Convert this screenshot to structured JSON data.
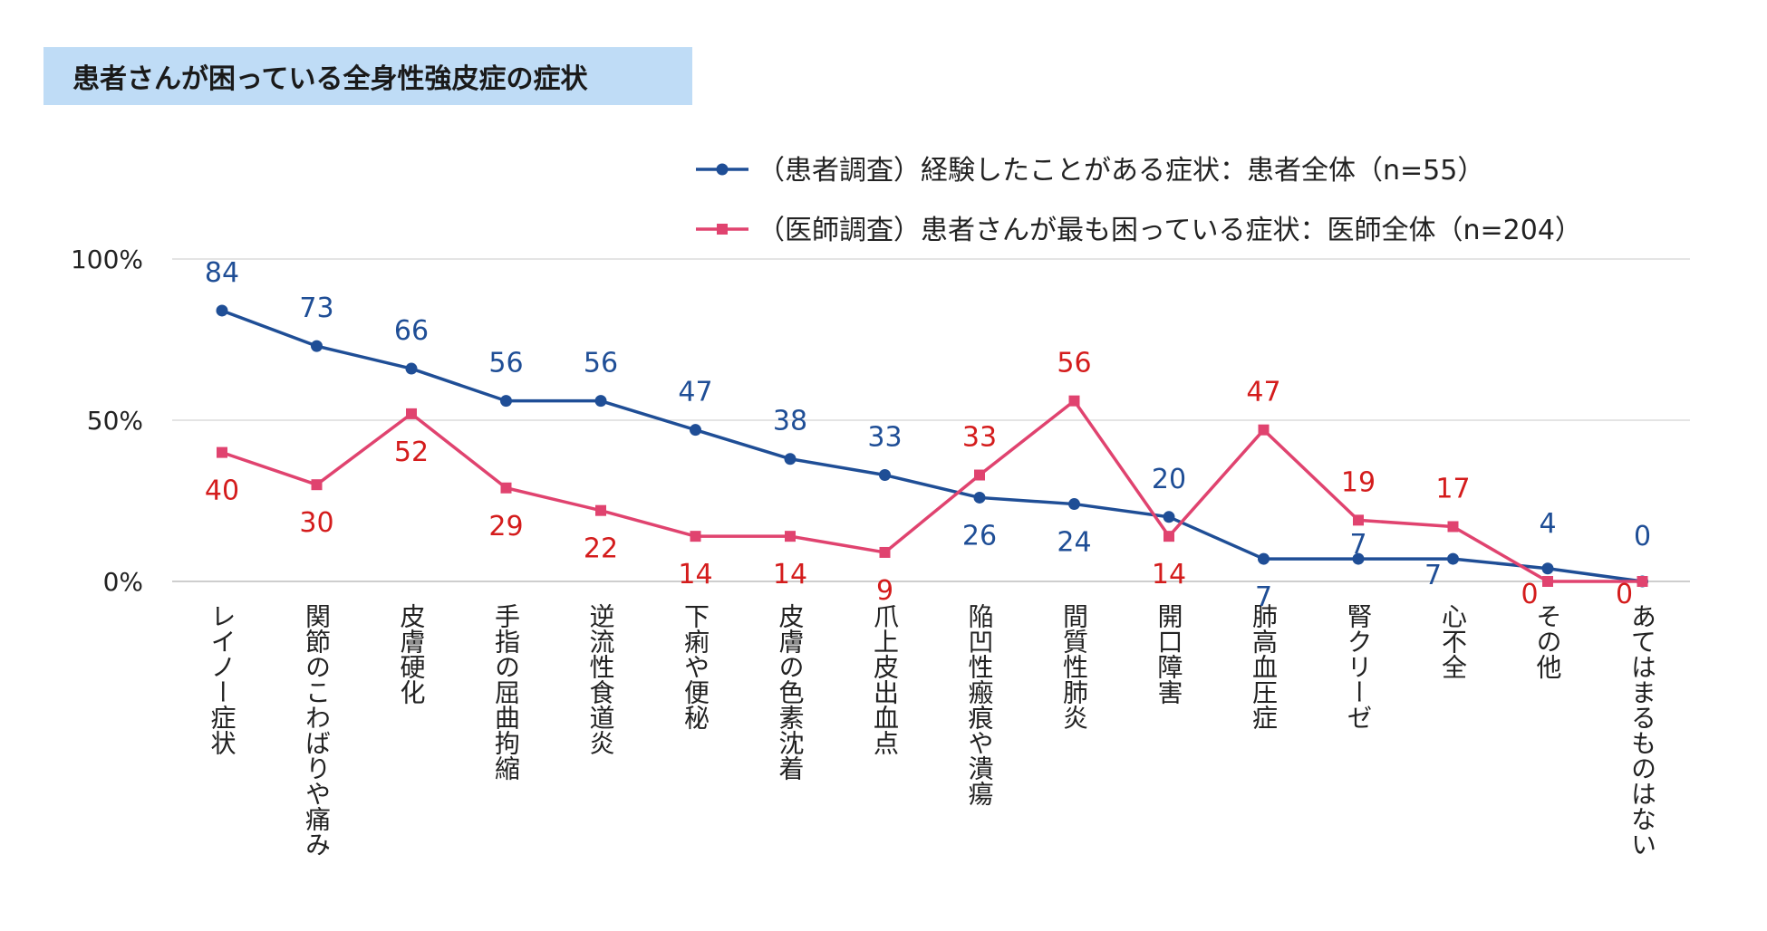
{
  "title": "患者さんが困っている全身性強皮症の症状",
  "chart_data": {
    "type": "line",
    "title": "患者さんが困っている全身性強皮症の症状",
    "categories": [
      "レイノー症状",
      "関節のこわばりや痛み",
      "皮膚硬化",
      "手指の屈曲拘縮",
      "逆流性食道炎",
      "下痢や便秘",
      "皮膚の色素沈着",
      "爪上皮出血点",
      "陥凹性瘢痕や潰瘍",
      "間質性肺炎",
      "開口障害",
      "肺高血圧症",
      "腎クリーゼ",
      "心不全",
      "その他",
      "あてはまるものはない"
    ],
    "yticks": [
      "0%",
      "50%",
      "100%"
    ],
    "ylim": [
      0,
      100
    ],
    "grid": true,
    "legend": "top-right",
    "series": [
      {
        "name": "（患者調査）経験したことがある症状：患者全体（n=55）",
        "color": "#1f4e96",
        "marker": "circle",
        "values": [
          84,
          73,
          66,
          56,
          56,
          47,
          38,
          33,
          26,
          24,
          20,
          7,
          7,
          7,
          4,
          0
        ]
      },
      {
        "name": "（医師調査）患者さんが最も困っている症状：医師全体（n=204）",
        "color": "#e0436f",
        "label_color": "#d41c1c",
        "marker": "square",
        "values": [
          40,
          30,
          52,
          29,
          22,
          14,
          14,
          9,
          33,
          56,
          14,
          47,
          19,
          17,
          0,
          0
        ]
      }
    ]
  }
}
